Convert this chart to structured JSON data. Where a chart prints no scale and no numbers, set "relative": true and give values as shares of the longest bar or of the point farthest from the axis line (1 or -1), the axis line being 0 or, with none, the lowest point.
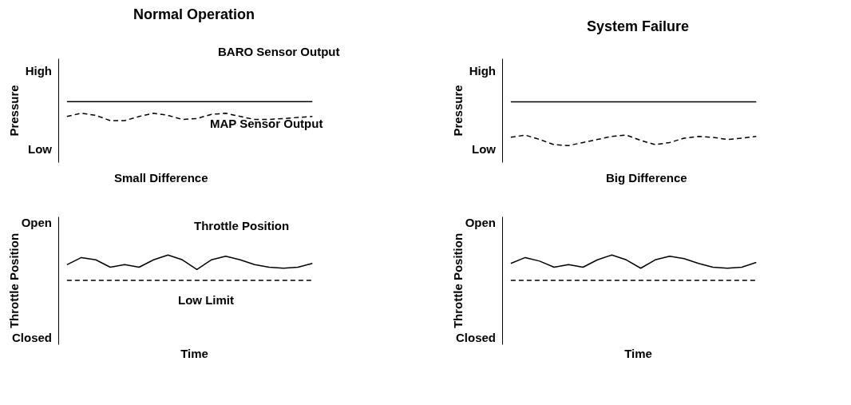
{
  "chart_data": [
    {
      "type": "line",
      "title": "Normal Operation",
      "ylabel": "Pressure",
      "categories": [
        null,
        null,
        null,
        null,
        null,
        null,
        null,
        null,
        null,
        null,
        null,
        null,
        null,
        null,
        null,
        null,
        null,
        null
      ],
      "relative": true,
      "grid": false,
      "marker": "none",
      "series": [
        {
          "color": "#000000",
          "line_style": "solid",
          "values": [
            1,
            1,
            1,
            1,
            1,
            1,
            1,
            1,
            1,
            1,
            1,
            1,
            1,
            1,
            1,
            1,
            1,
            1
          ]
        },
        {
          "color": "#000000",
          "line_style": "dashed",
          "values": [
            0.22,
            0.39,
            0.28,
            0,
            0,
            0.22,
            0.39,
            0.28,
            0.06,
            0.11,
            0.33,
            0.39,
            0.22,
            0.06,
            0.06,
            0.11,
            0.17,
            0.22
          ]
        }
      ],
      "annotations": [
        "High",
        "Low",
        "BARO Sensor Output",
        "MAP Sensor Output",
        "Small Difference"
      ]
    },
    {
      "type": "line",
      "title": "System Failure",
      "ylabel": "Pressure",
      "categories": [
        null,
        null,
        null,
        null,
        null,
        null,
        null,
        null,
        null,
        null,
        null,
        null,
        null,
        null,
        null,
        null,
        null,
        null
      ],
      "relative": true,
      "grid": false,
      "marker": "none",
      "series": [
        {
          "color": "#000000",
          "line_style": "solid",
          "values": [
            1,
            1,
            1,
            1,
            1,
            1,
            1,
            1,
            1,
            1,
            1,
            1,
            1,
            1,
            1,
            1,
            1,
            1
          ]
        },
        {
          "color": "#000000",
          "line_style": "dashed",
          "values": [
            0.19,
            0.24,
            0.14,
            0.02,
            0,
            0.07,
            0.14,
            0.21,
            0.24,
            0.12,
            0.02,
            0.07,
            0.17,
            0.21,
            0.19,
            0.14,
            0.17,
            0.21
          ]
        }
      ],
      "annotations": [
        "High",
        "Low",
        "Big Difference"
      ]
    },
    {
      "type": "line",
      "ylabel": "Throttle Position",
      "xlabel": "Time",
      "categories": [
        null,
        null,
        null,
        null,
        null,
        null,
        null,
        null,
        null,
        null,
        null,
        null,
        null,
        null,
        null,
        null,
        null,
        null
      ],
      "relative": true,
      "grid": false,
      "marker": "none",
      "series": [
        {
          "color": "#000000",
          "line_style": "solid",
          "values": [
            0.62,
            0.9,
            0.81,
            0.52,
            0.62,
            0.52,
            0.81,
            1,
            0.81,
            0.43,
            0.81,
            0.95,
            0.81,
            0.62,
            0.52,
            0.48,
            0.52,
            0.67
          ]
        },
        {
          "color": "#000000",
          "line_style": "dashed",
          "values": [
            0,
            0,
            0,
            0,
            0,
            0,
            0,
            0,
            0,
            0,
            0,
            0,
            0,
            0,
            0,
            0,
            0,
            0
          ]
        }
      ],
      "annotations": [
        "Open",
        "Closed",
        "Throttle Position",
        "Low Limit"
      ]
    },
    {
      "type": "line",
      "ylabel": "Throttle Position",
      "xlabel": "Time",
      "categories": [
        null,
        null,
        null,
        null,
        null,
        null,
        null,
        null,
        null,
        null,
        null,
        null,
        null,
        null,
        null,
        null,
        null,
        null
      ],
      "relative": true,
      "grid": false,
      "marker": "none",
      "series": [
        {
          "color": "#000000",
          "line_style": "solid",
          "values": [
            0.67,
            0.9,
            0.76,
            0.52,
            0.62,
            0.52,
            0.81,
            1,
            0.81,
            0.48,
            0.81,
            0.95,
            0.86,
            0.67,
            0.52,
            0.48,
            0.52,
            0.71
          ]
        },
        {
          "color": "#000000",
          "line_style": "dashed",
          "values": [
            0,
            0,
            0,
            0,
            0,
            0,
            0,
            0,
            0,
            0,
            0,
            0,
            0,
            0,
            0,
            0,
            0,
            0
          ]
        }
      ],
      "annotations": [
        "Open",
        "Closed"
      ]
    }
  ]
}
